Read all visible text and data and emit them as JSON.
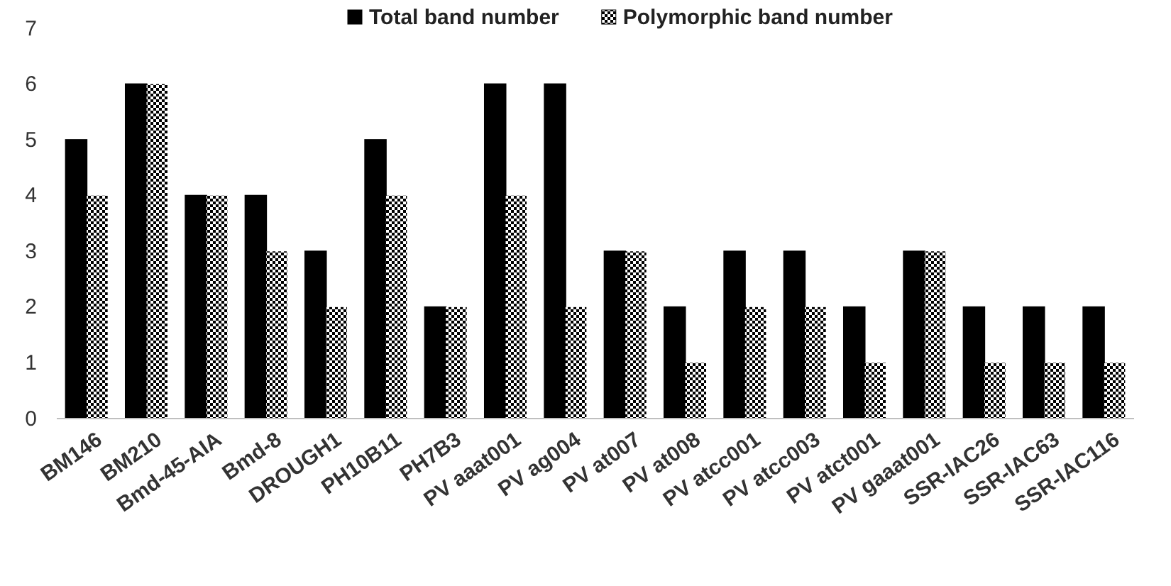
{
  "chart_data": {
    "type": "bar",
    "categories": [
      "BM146",
      "BM210",
      "Bmd-45-AIA",
      "Bmd-8",
      "DROUGH1",
      "PH10B11",
      "PH7B3",
      "PV aaat001",
      "PV ag004",
      "PV at007",
      "PV at008",
      "PV atcc001",
      "PV atcc003",
      "PV atct001",
      "PV gaaat001",
      "SSR-IAC26",
      "SSR-IAC63",
      "SSR-IAC116"
    ],
    "series": [
      {
        "name": "Total band number",
        "color": "#000000",
        "values": [
          5,
          6,
          4,
          4,
          3,
          5,
          2,
          6,
          6,
          3,
          2,
          3,
          3,
          2,
          3,
          2,
          2,
          2
        ]
      },
      {
        "name": "Polymorphic band number",
        "color": "#000000",
        "values": [
          4,
          6,
          4,
          3,
          2,
          4,
          2,
          4,
          2,
          3,
          1,
          2,
          2,
          1,
          3,
          1,
          1,
          1
        ]
      }
    ],
    "ylim": [
      0,
      7
    ],
    "yticks": [
      0,
      1,
      2,
      3,
      4,
      5,
      6,
      7
    ],
    "legend": "top",
    "grid": false
  }
}
